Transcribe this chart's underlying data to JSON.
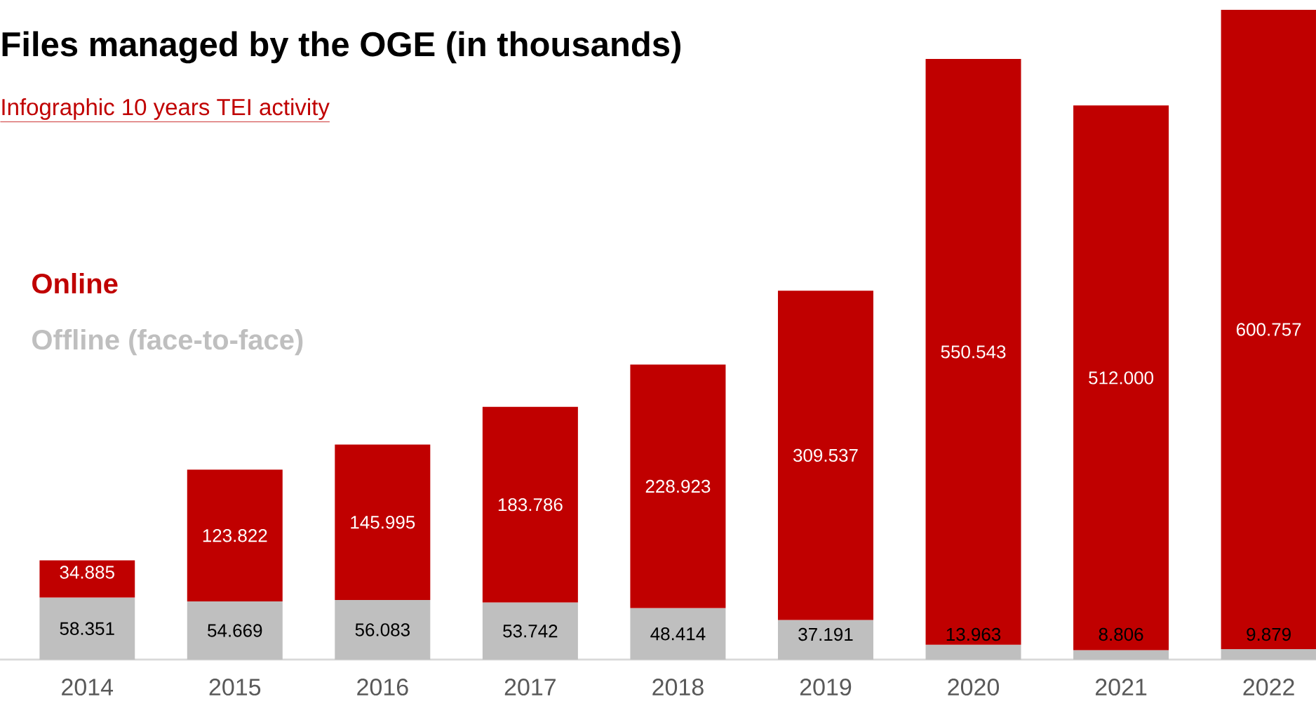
{
  "chart_data": {
    "type": "bar",
    "stacked": true,
    "title": "Files managed by the OGE (in thousands)",
    "subtitle": "Infographic 10 years TEI activity",
    "categories": [
      "2014",
      "2015",
      "2016",
      "2017",
      "2018",
      "2019",
      "2020",
      "2021",
      "2022"
    ],
    "series": [
      {
        "name": "**Offline** (face-to-face)",
        "color": "#bfbfbf",
        "values": [
          58.351,
          54.669,
          56.083,
          53.742,
          48.414,
          37.191,
          13.963,
          8.806,
          9.879
        ],
        "value_labels": [
          "58.351",
          "54.669",
          "56.083",
          "53.742",
          "48.414",
          "37.191",
          "13.963",
          "8.806",
          "9.879"
        ]
      },
      {
        "name": "Online",
        "color": "#c00000",
        "values": [
          34.885,
          123.822,
          145.995,
          183.786,
          228.923,
          309.537,
          550.543,
          512.0,
          600.757
        ],
        "value_labels": [
          "34.885",
          "123.822",
          "145.995",
          "183.786",
          "228.923",
          "309.537",
          "550.543",
          "512.000",
          "600.757"
        ]
      }
    ],
    "legend": "left",
    "grid": false
  }
}
